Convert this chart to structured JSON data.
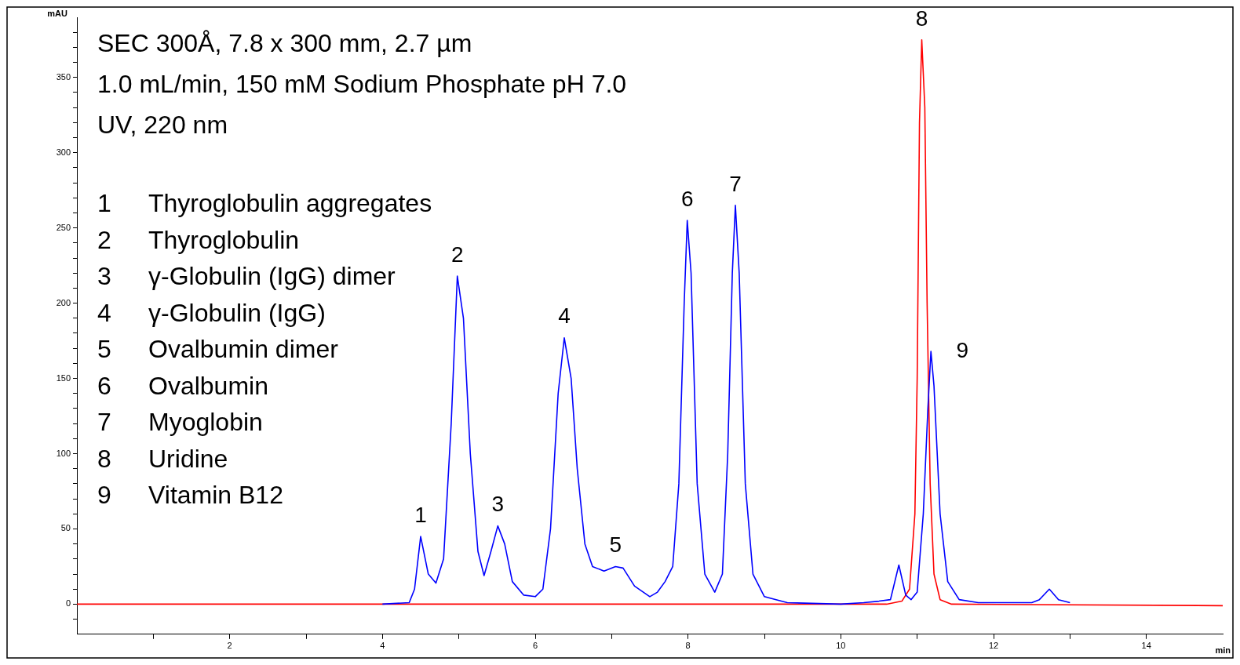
{
  "chart_data": {
    "type": "line",
    "title": "SEC 300Å, 7.8 x 300 mm, 2.7 µm",
    "subtitle": "1.0 mL/min, 150 mM Sodium Phosphate pH 7.0",
    "xlabel": "min",
    "ylabel": "mAU",
    "annotations": [
      "UV, 220 nm",
      "1 Thyroglobulin aggregates",
      "2 Thyroglobulin",
      "3 γ-Globulin (IgG) dimer",
      "4 γ-Globulin (IgG)",
      "5 Ovalbumin dimer",
      "6 Ovalbumin",
      "7 Myoglobin",
      "8 Uridine",
      "9 Vitamin B12",
      {
        "text": "1",
        "x": 4.5,
        "y": 45
      },
      {
        "text": "2",
        "x": 4.98,
        "y": 218
      },
      {
        "text": "3",
        "x": 5.51,
        "y": 52
      },
      {
        "text": "4",
        "x": 6.38,
        "y": 177
      },
      {
        "text": "5",
        "x": 7.05,
        "y": 25
      },
      {
        "text": "6",
        "x": 7.99,
        "y": 255
      },
      {
        "text": "7",
        "x": 8.62,
        "y": 265
      },
      {
        "text": "8",
        "x": 11.06,
        "y": 375
      },
      {
        "text": "9",
        "x": 11.18,
        "y": 168
      }
    ],
    "series": [
      {
        "color": "#0000ff",
        "x": [
          4.0,
          4.35,
          4.42,
          4.5,
          4.6,
          4.7,
          4.8,
          4.9,
          4.98,
          5.06,
          5.15,
          5.25,
          5.33,
          5.42,
          5.51,
          5.6,
          5.7,
          5.85,
          6.0,
          6.1,
          6.2,
          6.3,
          6.38,
          6.47,
          6.55,
          6.65,
          6.75,
          6.9,
          7.05,
          7.15,
          7.3,
          7.5,
          7.6,
          7.7,
          7.8,
          7.88,
          7.95,
          7.99,
          8.04,
          8.12,
          8.22,
          8.35,
          8.45,
          8.52,
          8.58,
          8.62,
          8.67,
          8.75,
          8.85,
          9.0,
          9.3,
          10.0,
          10.3,
          10.5,
          10.65,
          10.76,
          10.85,
          10.92,
          11.0,
          11.08,
          11.14,
          11.18,
          11.22,
          11.3,
          11.4,
          11.55,
          11.8,
          12.5,
          12.6,
          12.73,
          12.85,
          13.0
        ],
        "values": [
          0,
          1,
          10,
          45,
          20,
          14,
          30,
          120,
          218,
          190,
          100,
          35,
          19,
          35,
          52,
          40,
          15,
          6,
          5,
          10,
          50,
          140,
          177,
          150,
          90,
          40,
          25,
          22,
          25,
          24,
          12,
          5,
          8,
          15,
          25,
          80,
          200,
          255,
          220,
          80,
          20,
          8,
          20,
          100,
          220,
          265,
          220,
          80,
          20,
          5,
          1,
          0,
          1,
          2,
          3,
          26,
          6,
          3,
          8,
          60,
          130,
          168,
          145,
          60,
          15,
          3,
          1,
          1,
          3,
          10,
          3,
          1
        ]
      },
      {
        "color": "#ff0000",
        "x": [
          0,
          10.6,
          10.8,
          10.9,
          10.97,
          11.0,
          11.03,
          11.06,
          11.1,
          11.13,
          11.17,
          11.22,
          11.3,
          11.45,
          15
        ],
        "values": [
          0,
          0,
          2,
          10,
          60,
          150,
          320,
          375,
          330,
          200,
          80,
          20,
          3,
          0,
          -1
        ]
      }
    ],
    "xlim": [
      0,
      15
    ],
    "xticks": [
      {
        "value": 1,
        "label": null
      },
      2,
      {
        "value": 3,
        "label": null
      },
      4,
      {
        "value": 5,
        "label": null
      },
      6,
      {
        "value": 7,
        "label": null
      },
      8,
      {
        "value": 9,
        "label": null
      },
      10,
      {
        "value": 11,
        "label": null
      },
      12,
      {
        "value": 13,
        "label": null
      },
      14
    ],
    "ylim": [
      -20,
      390
    ],
    "yticks": [
      {
        "value": -10,
        "label": null
      },
      0,
      {
        "value": 10,
        "label": null
      },
      {
        "value": 20,
        "label": null
      },
      {
        "value": 30,
        "label": null
      },
      {
        "value": 40,
        "label": null
      },
      50,
      {
        "value": 60,
        "label": null
      },
      {
        "value": 70,
        "label": null
      },
      {
        "value": 80,
        "label": null
      },
      {
        "value": 90,
        "label": null
      },
      100,
      {
        "value": 110,
        "label": null
      },
      {
        "value": 120,
        "label": null
      },
      {
        "value": 130,
        "label": null
      },
      {
        "value": 140,
        "label": null
      },
      150,
      {
        "value": 160,
        "label": null
      },
      {
        "value": 170,
        "label": null
      },
      {
        "value": 180,
        "label": null
      },
      {
        "value": 190,
        "label": null
      },
      200,
      {
        "value": 210,
        "label": null
      },
      {
        "value": 220,
        "label": null
      },
      {
        "value": 230,
        "label": null
      },
      {
        "value": 240,
        "label": null
      },
      250,
      {
        "value": 260,
        "label": null
      },
      {
        "value": 270,
        "label": null
      },
      {
        "value": 280,
        "label": null
      },
      {
        "value": 290,
        "label": null
      },
      300,
      {
        "value": 310,
        "label": null
      },
      {
        "value": 320,
        "label": null
      },
      {
        "value": 330,
        "label": null
      },
      {
        "value": 340,
        "label": null
      },
      350,
      {
        "value": 360,
        "label": null
      },
      {
        "value": 370,
        "label": null
      },
      {
        "value": 380,
        "label": null
      }
    ],
    "grid": false,
    "legend": false,
    "marker": "none",
    "line_style": "solid"
  }
}
